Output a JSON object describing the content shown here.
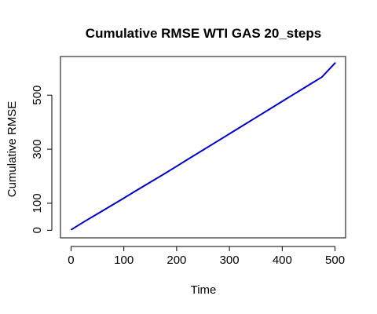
{
  "chart_data": {
    "type": "line",
    "title": "Cumulative RMSE WTI GAS 20_steps",
    "xlabel": "Time",
    "ylabel": "Cumulative RMSE",
    "xlim": [
      -20,
      520
    ],
    "ylim": [
      -28,
      643
    ],
    "x_ticks": [
      0,
      100,
      200,
      300,
      400,
      500
    ],
    "x_tick_labels": [
      "0",
      "100",
      "200",
      "300",
      "400",
      "500"
    ],
    "y_ticks": [
      0,
      100,
      300,
      500
    ],
    "y_tick_labels": [
      "0",
      "100",
      "300",
      "500"
    ],
    "grid": false,
    "series": [
      {
        "color": "#0000cc",
        "x": [
          1,
          25,
          50,
          75,
          100,
          125,
          150,
          175,
          200,
          225,
          250,
          275,
          300,
          325,
          350,
          375,
          400,
          425,
          450,
          475,
          500
        ],
        "values": [
          3,
          32,
          61,
          90,
          119,
          149,
          178,
          207,
          237,
          267,
          297,
          327,
          357,
          387,
          417,
          447,
          477,
          507,
          537,
          567,
          619
        ]
      }
    ]
  }
}
